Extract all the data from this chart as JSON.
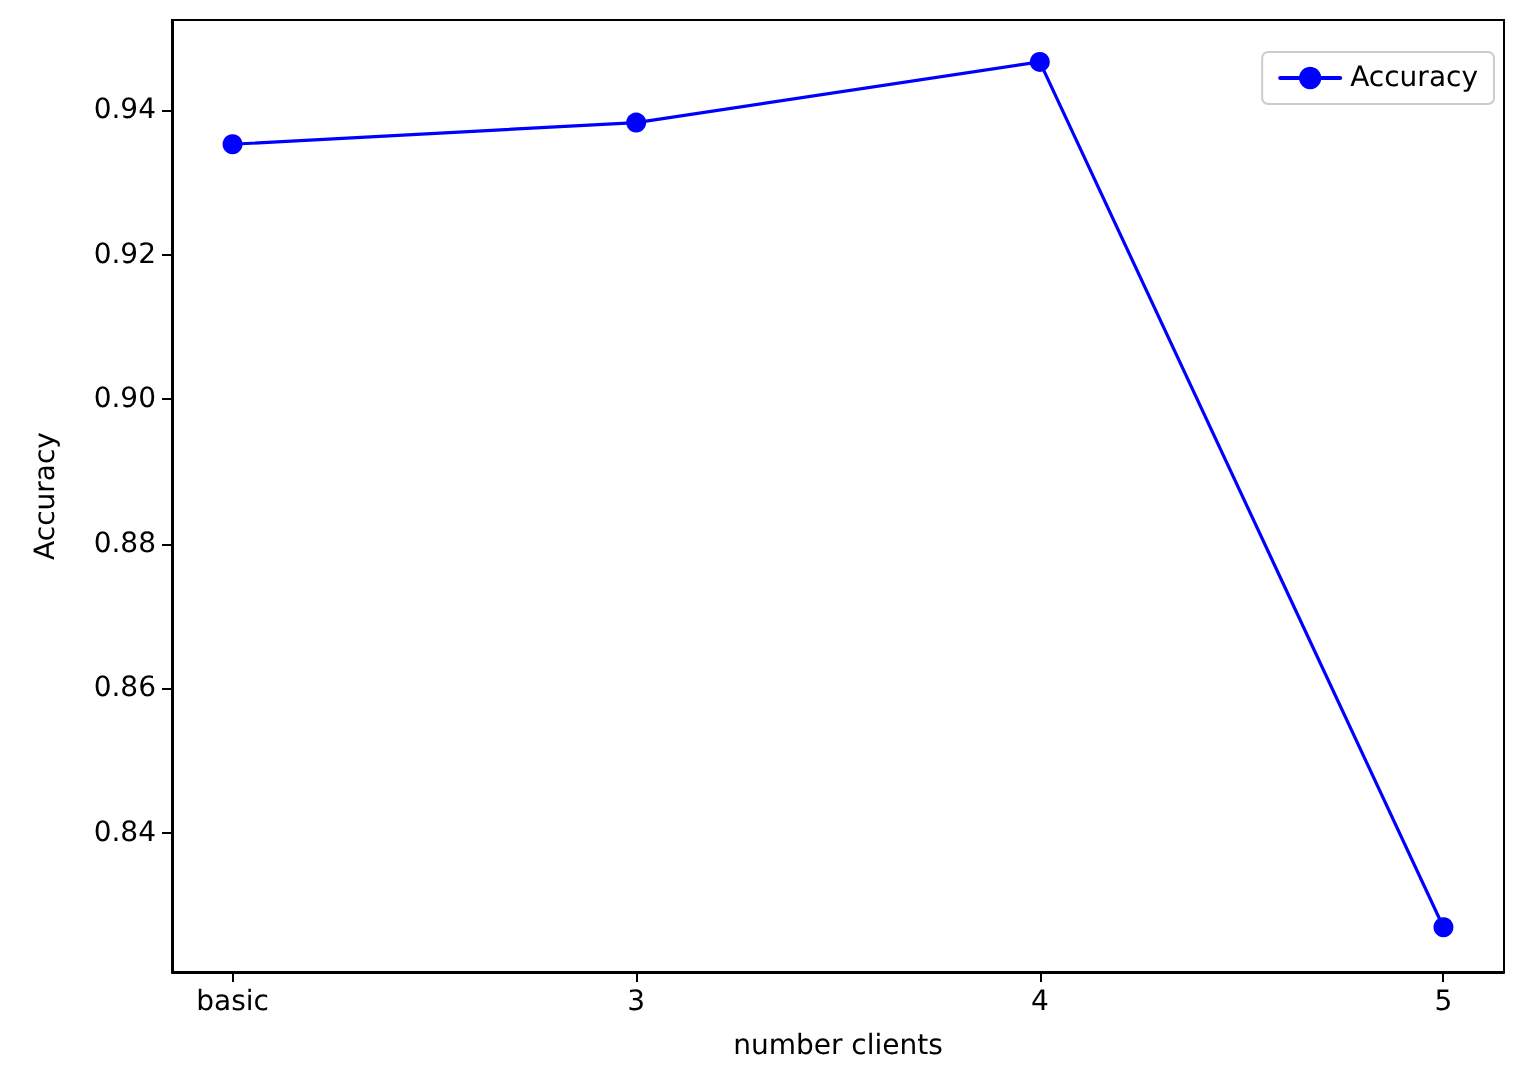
{
  "chart_data": {
    "type": "line",
    "xlabel": "number clients",
    "ylabel": "Accuracy",
    "categories": [
      "basic",
      "3",
      "4",
      "5"
    ],
    "series": [
      {
        "name": "Accuracy",
        "color": "#0000ff",
        "values": [
          0.9353,
          0.9383,
          0.9467,
          0.8269
        ]
      }
    ],
    "ylim": [
      0.8207,
      0.9525
    ],
    "yticks": [
      0.84,
      0.86,
      0.88,
      {
        "value": 0.9,
        "label": "0.90"
      },
      0.92,
      0.94
    ],
    "legend": "top right",
    "marker": "circle",
    "line_style": "solid",
    "grid": false
  }
}
